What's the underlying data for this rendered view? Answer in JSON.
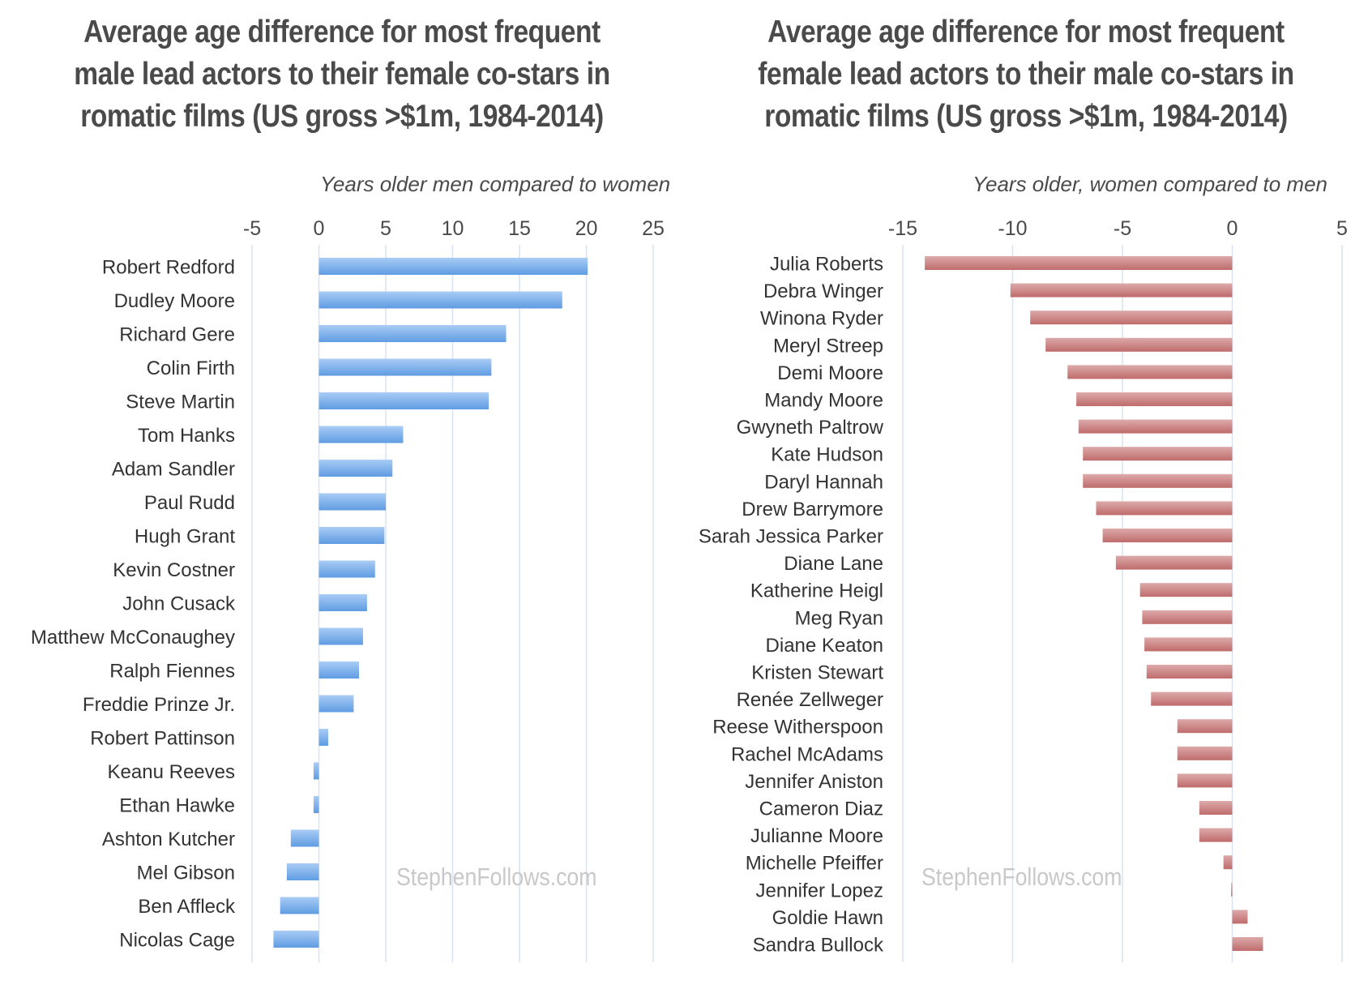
{
  "chart_data": [
    {
      "type": "bar",
      "orientation": "horizontal",
      "title": [
        "Average age difference for most frequent",
        "male lead actors to their female co-stars in",
        "romatic films (US gross >$1m, 1984-2014)"
      ],
      "xlabel": "Years older men compared to women",
      "xlim": [
        -5,
        25
      ],
      "xticks": [
        -5,
        0,
        5,
        10,
        15,
        20,
        25
      ],
      "grid": true,
      "color": "#6ea7e6",
      "watermark": "StephenFollows.com",
      "categories": [
        "Robert Redford",
        "Dudley Moore",
        "Richard Gere",
        "Colin Firth",
        "Steve Martin",
        "Tom Hanks",
        "Adam Sandler",
        "Paul Rudd",
        "Hugh Grant",
        "Kevin Costner",
        "John Cusack",
        "Matthew McConaughey",
        "Ralph Fiennes",
        "Freddie Prinze Jr.",
        "Robert Pattinson",
        "Keanu Reeves",
        "Ethan Hawke",
        "Ashton Kutcher",
        "Mel Gibson",
        "Ben Affleck",
        "Nicolas Cage"
      ],
      "values": [
        20.1,
        18.2,
        14.0,
        12.9,
        12.7,
        6.3,
        5.5,
        5.0,
        4.9,
        4.2,
        3.6,
        3.3,
        3.0,
        2.6,
        0.7,
        -0.4,
        -0.4,
        -2.1,
        -2.4,
        -2.9,
        -3.4
      ]
    },
    {
      "type": "bar",
      "orientation": "horizontal",
      "title": [
        "Average age difference for most frequent",
        "female lead actors to their male co-stars in",
        "romatic films (US gross >$1m, 1984-2014)"
      ],
      "xlabel": "Years older, women compared to men",
      "xlim": [
        -15,
        5
      ],
      "xticks": [
        -15,
        -10,
        -5,
        0,
        5
      ],
      "grid": true,
      "color": "#c97a7a",
      "watermark": "StephenFollows.com",
      "categories": [
        "Julia Roberts",
        "Debra Winger",
        "Winona Ryder",
        "Meryl Streep",
        "Demi Moore",
        "Mandy Moore",
        "Gwyneth Paltrow",
        "Kate Hudson",
        "Daryl Hannah",
        "Drew Barrymore",
        "Sarah Jessica Parker",
        "Diane Lane",
        "Katherine Heigl",
        "Meg Ryan",
        "Diane Keaton",
        "Kristen Stewart",
        "Renée Zellweger",
        "Reese Witherspoon",
        "Rachel McAdams",
        "Jennifer Aniston",
        "Cameron Diaz",
        "Julianne Moore",
        "Michelle Pfeiffer",
        "Jennifer Lopez",
        "Goldie Hawn",
        "Sandra Bullock"
      ],
      "values": [
        -14.0,
        -10.1,
        -9.2,
        -8.5,
        -7.5,
        -7.1,
        -7.0,
        -6.8,
        -6.8,
        -6.2,
        -5.9,
        -5.3,
        -4.2,
        -4.1,
        -4.0,
        -3.9,
        -3.7,
        -2.5,
        -2.5,
        -2.5,
        -1.5,
        -1.5,
        -0.4,
        -0.05,
        0.7,
        1.4
      ]
    }
  ]
}
